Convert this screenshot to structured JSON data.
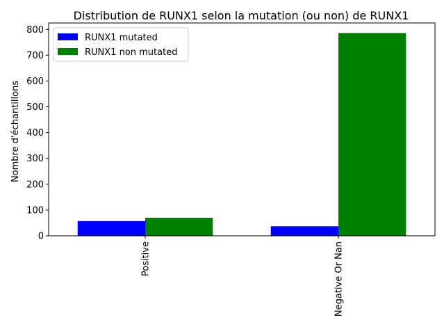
{
  "chart_data": {
    "type": "bar",
    "title": "Distribution de RUNX1 selon la mutation (ou non) de RUNX1",
    "xlabel": "",
    "ylabel": "Nombre d'échantillons",
    "categories": [
      "Positive",
      "Negative Or Nan"
    ],
    "series": [
      {
        "name": "RUNX1 mutated",
        "color": "#0000ff",
        "values": [
          57,
          37
        ]
      },
      {
        "name": "RUNX1 non mutated",
        "color": "#008000",
        "values": [
          70,
          786
        ]
      }
    ],
    "ylim": [
      0,
      825
    ],
    "yticks": [
      0,
      100,
      200,
      300,
      400,
      500,
      600,
      700,
      800
    ],
    "grid": false,
    "legend_position": "top-left"
  }
}
